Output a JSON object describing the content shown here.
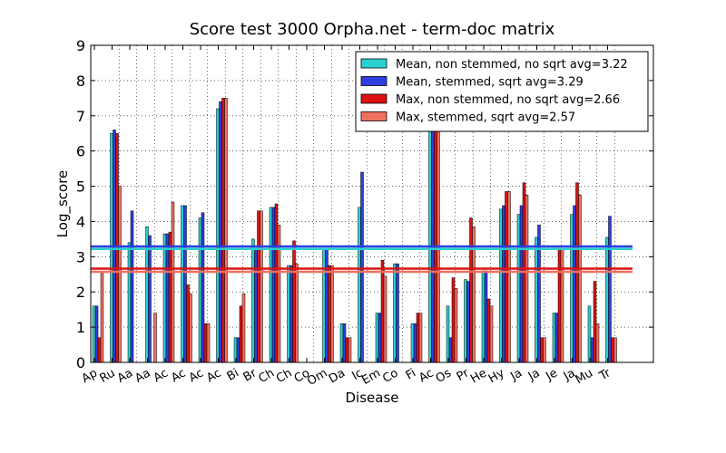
{
  "chart_data": {
    "type": "bar",
    "title": "Score test 3000 Orpha.net - term-doc matrix",
    "xlabel": "Disease",
    "ylabel": "Log_score",
    "ylim": [
      0,
      9
    ],
    "yticks": [
      "0",
      "1",
      "2",
      "3",
      "4",
      "5",
      "6",
      "7",
      "8",
      "9"
    ],
    "grid": true,
    "legend_position": "top-right",
    "categories": [
      "Ap",
      "Ru",
      "Aa",
      "Aa",
      "Ac",
      "Ac",
      "Ac",
      "Ac",
      "Bi",
      "Br",
      "Ch",
      "Ch",
      "Co",
      "Om",
      "Da",
      "Ic",
      "Em",
      "Co",
      "Fi",
      "Ac",
      "Os",
      "Pr",
      "He",
      "Hy",
      "Ja",
      "Ja",
      "Je",
      "Ja",
      "Mu",
      "Tr"
    ],
    "series": [
      {
        "name": "Mean, non stemmed, no sqrt avg=3.22",
        "color": "#2ad0d0",
        "values": [
          1.6,
          6.5,
          3.4,
          3.85,
          3.65,
          4.45,
          4.1,
          7.2,
          0.7,
          3.5,
          4.4,
          2.75,
          0,
          3.2,
          1.1,
          4.4,
          1.4,
          2.8,
          1.1,
          6.6,
          1.6,
          2.35,
          2.6,
          4.35,
          4.2,
          3.55,
          1.4,
          4.2,
          1.6,
          3.55
        ]
      },
      {
        "name": "Mean, stemmed, sqrt avg=3.29",
        "color": "#2e3fe0",
        "values": [
          1.6,
          6.6,
          4.3,
          3.6,
          3.65,
          4.45,
          4.25,
          7.4,
          0.7,
          3.2,
          4.4,
          2.75,
          0,
          3.2,
          1.1,
          5.4,
          1.4,
          2.8,
          1.1,
          6.6,
          0.7,
          2.3,
          2.6,
          4.45,
          4.45,
          3.9,
          1.4,
          4.45,
          0.7,
          4.15
        ]
      },
      {
        "name": "Max, non stemmed, no sqrt avg=2.66",
        "color": "#dd1111",
        "values": [
          0.7,
          6.5,
          0,
          0,
          3.7,
          2.2,
          1.1,
          7.5,
          1.6,
          4.3,
          4.5,
          3.45,
          0,
          2.75,
          0.7,
          0,
          2.9,
          0,
          1.4,
          6.6,
          2.4,
          4.1,
          1.8,
          4.85,
          5.1,
          0.7,
          3.25,
          5.1,
          2.3,
          0.7
        ]
      },
      {
        "name": "Max, stemmed, sqrt avg=2.57",
        "color": "#f07060",
        "values": [
          2.55,
          5,
          0,
          1.4,
          4.55,
          1.95,
          1.1,
          7.5,
          1.95,
          4.3,
          3.9,
          2.8,
          0,
          2.75,
          0.7,
          0,
          2.45,
          0,
          1.4,
          6.6,
          2.1,
          3.85,
          1.6,
          4.85,
          4.75,
          0.7,
          3.2,
          4.75,
          1.1,
          0.7
        ]
      }
    ],
    "avg_lines": [
      {
        "series": "Mean, non stemmed, no sqrt avg=3.22",
        "value": 3.22
      },
      {
        "series": "Mean, stemmed, sqrt avg=3.29",
        "value": 3.29
      },
      {
        "series": "Max, non stemmed, no sqrt avg=2.66",
        "value": 2.66
      },
      {
        "series": "Max, stemmed, sqrt avg=2.57",
        "value": 2.57
      }
    ]
  }
}
